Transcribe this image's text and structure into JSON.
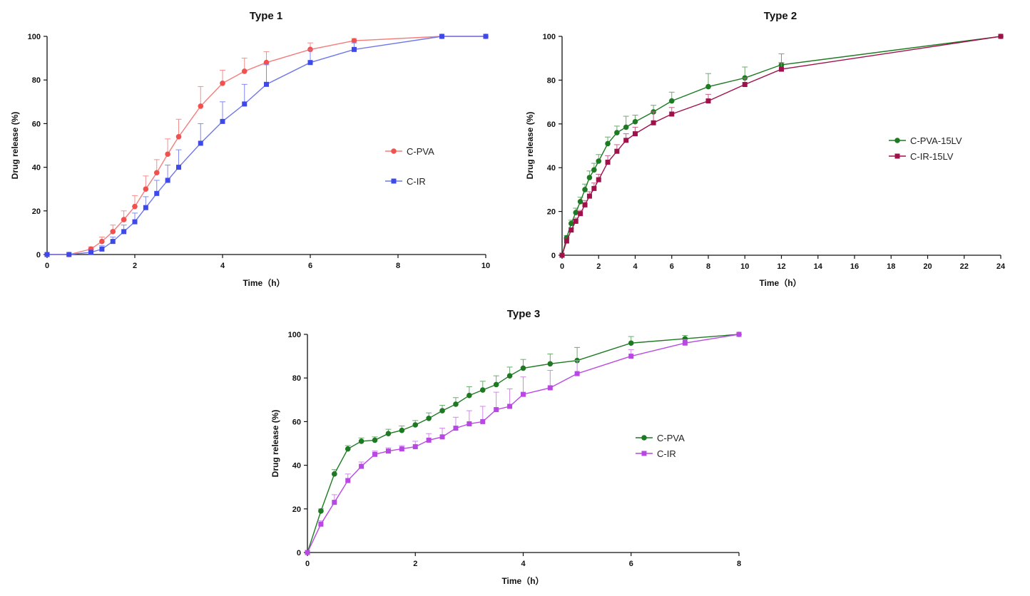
{
  "chart_data": [
    {
      "id": "type1",
      "type": "line",
      "title": "Type 1",
      "xlabel": "Time（h）",
      "ylabel": "Drug release (%)",
      "xlim": [
        0,
        10
      ],
      "ylim": [
        0,
        100
      ],
      "xticks": [
        0,
        2,
        4,
        6,
        8,
        10
      ],
      "yticks": [
        0,
        20,
        40,
        60,
        80,
        100
      ],
      "grid": false,
      "legend_position": "center-right",
      "series": [
        {
          "name": "C-PVA",
          "marker": "circle",
          "color": "#f0504e",
          "x": [
            0,
            0.5,
            1,
            1.25,
            1.5,
            1.75,
            2,
            2.25,
            2.5,
            2.75,
            3,
            3.5,
            4,
            4.5,
            5,
            6,
            7,
            9,
            10
          ],
          "y": [
            0,
            0,
            2.5,
            6,
            10.5,
            16,
            22,
            30,
            37.5,
            46,
            54,
            68,
            78.5,
            84,
            88,
            94,
            98,
            100,
            100
          ],
          "err": [
            0,
            0,
            1,
            2,
            3,
            4,
            5,
            6,
            6,
            7,
            8,
            9,
            6,
            6,
            5,
            3,
            1,
            0,
            0
          ]
        },
        {
          "name": "C-IR",
          "marker": "square",
          "color": "#3d49e8",
          "x": [
            0,
            0.5,
            1,
            1.25,
            1.5,
            1.75,
            2,
            2.25,
            2.5,
            2.75,
            3,
            3.5,
            4,
            4.5,
            5,
            6,
            7,
            9,
            10
          ],
          "y": [
            0,
            0,
            1,
            2.5,
            6,
            10.5,
            15,
            21.5,
            28,
            34,
            40,
            51,
            61,
            69,
            78,
            88,
            94,
            100,
            100
          ],
          "err": [
            0,
            0,
            1,
            1.5,
            2,
            3,
            4,
            5,
            6,
            7,
            8,
            9,
            9,
            9,
            9,
            6,
            3,
            0,
            0
          ]
        }
      ]
    },
    {
      "id": "type2",
      "type": "line",
      "title": "Type 2",
      "xlabel": "Time（h）",
      "ylabel": "Drug release (%)",
      "xlim": [
        0,
        24
      ],
      "ylim": [
        0,
        100
      ],
      "xticks": [
        0,
        2,
        4,
        6,
        8,
        10,
        12,
        14,
        16,
        18,
        20,
        22,
        24
      ],
      "yticks": [
        0,
        20,
        40,
        60,
        80,
        100
      ],
      "grid": false,
      "legend_position": "center-right",
      "series": [
        {
          "name": "C-PVA-15LV",
          "marker": "circle",
          "color": "#1d7a22",
          "x": [
            0,
            0.25,
            0.5,
            0.75,
            1,
            1.25,
            1.5,
            1.75,
            2,
            2.5,
            3,
            3.5,
            4,
            5,
            6,
            8,
            10,
            12,
            24
          ],
          "y": [
            0,
            8,
            14.5,
            19.5,
            24.5,
            30,
            35.5,
            39,
            43,
            51,
            56,
            58.5,
            61,
            65.5,
            70.5,
            77,
            81,
            87,
            100
          ],
          "err": [
            0,
            1,
            1.5,
            2,
            2,
            2.5,
            3,
            3,
            3,
            3,
            3,
            5,
            3,
            3,
            4,
            6,
            5,
            5,
            0
          ]
        },
        {
          "name": "C-IR-15LV",
          "marker": "square",
          "color": "#a0104a",
          "x": [
            0,
            0.25,
            0.5,
            0.75,
            1,
            1.25,
            1.5,
            1.75,
            2,
            2.5,
            3,
            3.5,
            4,
            5,
            6,
            8,
            10,
            12,
            24
          ],
          "y": [
            0,
            6.5,
            11.5,
            15.5,
            19,
            23,
            27,
            30.5,
            34.5,
            42.5,
            47.5,
            52.5,
            55.5,
            60.5,
            64.5,
            70.5,
            78,
            85,
            100
          ],
          "err": [
            0,
            1,
            1,
            1.5,
            1.5,
            2,
            2,
            2.5,
            2.5,
            3,
            3,
            3,
            3,
            5,
            3,
            3,
            3,
            3,
            0
          ]
        }
      ]
    },
    {
      "id": "type3",
      "type": "line",
      "title": "Type 3",
      "xlabel": "Time（h）",
      "ylabel": "Drug release (%)",
      "xlim": [
        0,
        8
      ],
      "ylim": [
        0,
        100
      ],
      "xticks": [
        0,
        2,
        4,
        6,
        8
      ],
      "yticks": [
        0,
        20,
        40,
        60,
        80,
        100
      ],
      "grid": false,
      "legend_position": "center-right",
      "series": [
        {
          "name": "C-PVA",
          "marker": "circle",
          "color": "#1d7a22",
          "x": [
            0,
            0.25,
            0.5,
            0.75,
            1,
            1.25,
            1.5,
            1.75,
            2,
            2.25,
            2.5,
            2.75,
            3,
            3.25,
            3.5,
            3.75,
            4,
            4.5,
            5,
            6,
            7,
            8
          ],
          "y": [
            0,
            19,
            36,
            47.5,
            51,
            51.5,
            54.5,
            56,
            58.5,
            61.5,
            65,
            68,
            72,
            74.5,
            77,
            81,
            84.5,
            86.5,
            88,
            96,
            98,
            100
          ],
          "err": [
            0,
            1,
            2,
            1.5,
            1.5,
            1.5,
            2,
            2,
            2,
            2.5,
            2.5,
            3,
            4,
            4,
            4,
            4,
            4,
            4.5,
            6,
            3,
            1.5,
            0
          ]
        },
        {
          "name": "C-IR",
          "marker": "square",
          "color": "#b847e3",
          "x": [
            0,
            0.25,
            0.5,
            0.75,
            1,
            1.25,
            1.5,
            1.75,
            2,
            2.25,
            2.5,
            2.75,
            3,
            3.25,
            3.5,
            3.75,
            4,
            4.5,
            5,
            6,
            7,
            8
          ],
          "y": [
            0,
            13,
            23,
            33,
            39.5,
            45,
            46.5,
            47.5,
            48.5,
            51.5,
            53,
            57,
            59,
            60,
            65.5,
            67,
            72.5,
            75.5,
            82,
            90,
            96,
            100
          ],
          "err": [
            0,
            1.5,
            3.5,
            3,
            2,
            1.5,
            1.5,
            1.5,
            2.5,
            3,
            4,
            5,
            6,
            7,
            8,
            8,
            8,
            8,
            6,
            3,
            1.5,
            0
          ]
        }
      ]
    }
  ]
}
